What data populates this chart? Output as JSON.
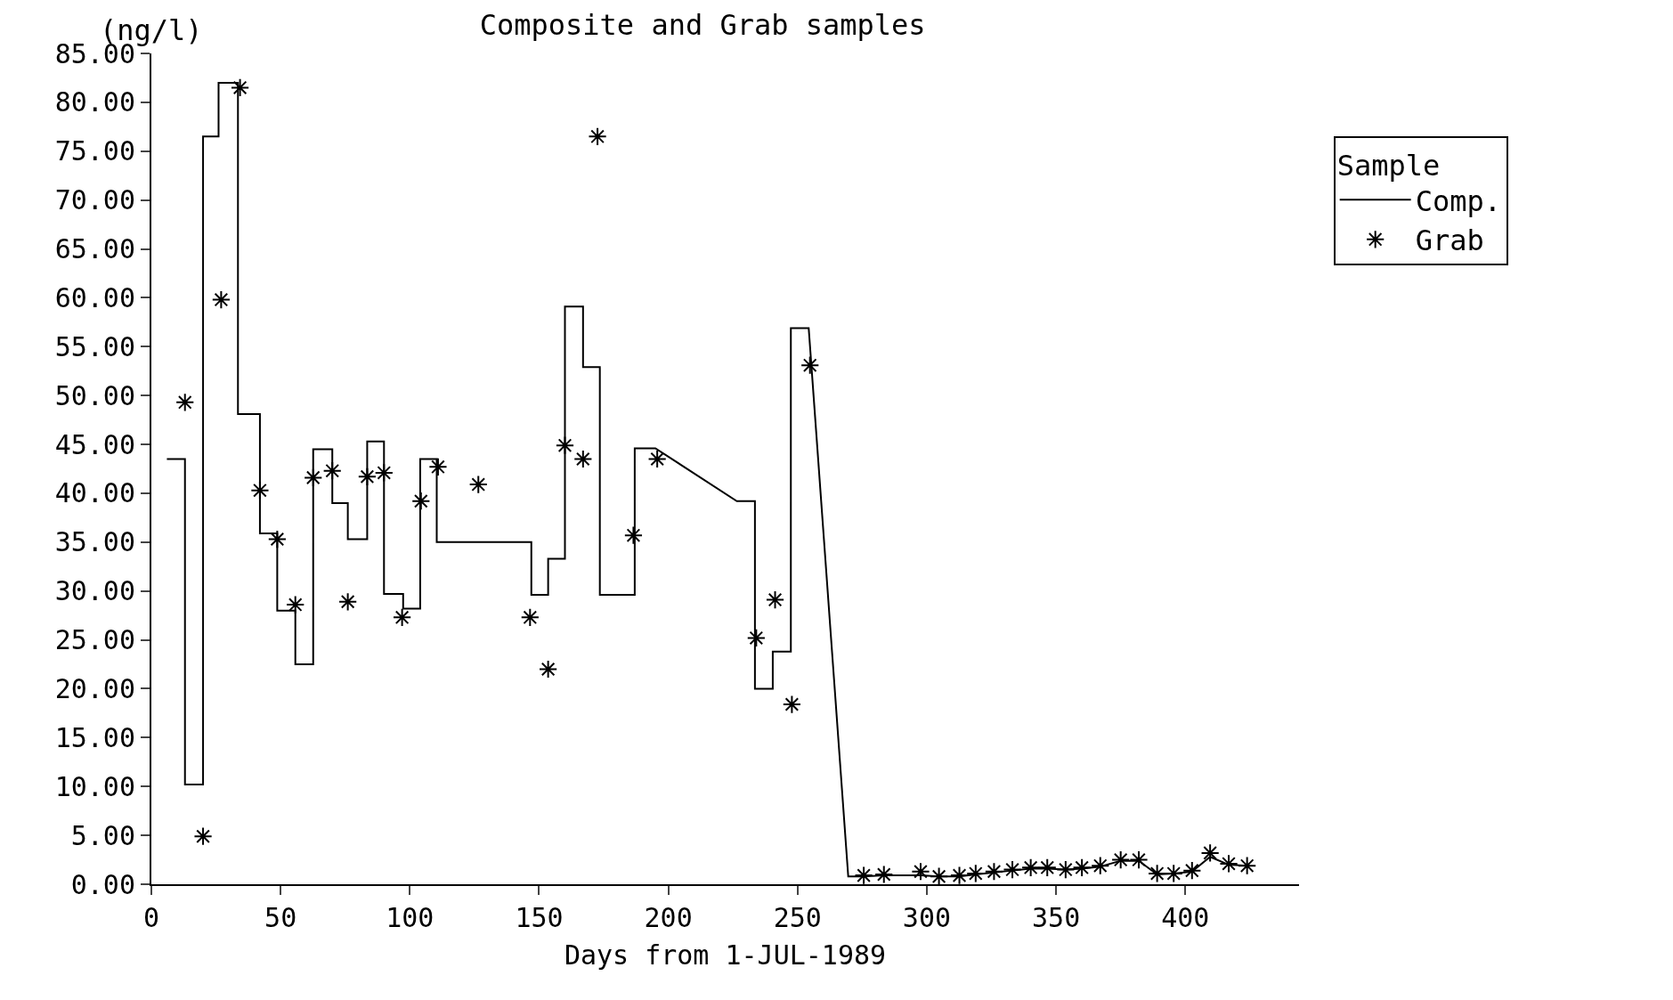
{
  "chart_data": {
    "type": "line",
    "title": "Composite and Grab samples",
    "xlabel": "Days from 1-JUL-1989",
    "ylabel": "(ng/l)",
    "legend_title": "Sample",
    "legend": "right",
    "xlim": [
      0,
      444
    ],
    "xticks": [
      0,
      50,
      100,
      150,
      200,
      250,
      300,
      350,
      400
    ],
    "ylim": [
      0,
      85
    ],
    "yticks": [
      {
        "value": 0,
        "label": "0.00"
      },
      {
        "value": 5,
        "label": "5.00"
      },
      {
        "value": 10,
        "label": "10.00"
      },
      {
        "value": 15,
        "label": "15.00"
      },
      {
        "value": 20,
        "label": "20.00"
      },
      {
        "value": 25,
        "label": "25.00"
      },
      {
        "value": 30,
        "label": "30.00"
      },
      {
        "value": 35,
        "label": "35.00"
      },
      {
        "value": 40,
        "label": "40.00"
      },
      {
        "value": 45,
        "label": "45.00"
      },
      {
        "value": 50,
        "label": "50.00"
      },
      {
        "value": 55,
        "label": "55.00"
      },
      {
        "value": 60,
        "label": "60.00"
      },
      {
        "value": 65,
        "label": "65.00"
      },
      {
        "value": 70,
        "label": "70.00"
      },
      {
        "value": 75,
        "label": "75.00"
      },
      {
        "value": 80,
        "label": "80.00"
      },
      {
        "value": 85,
        "label": "85.00"
      }
    ],
    "series": [
      {
        "name": "Comp.",
        "marker": "none",
        "line_style": "solid",
        "color": "#000000",
        "x": [
          6,
          13,
          13,
          20,
          20,
          26,
          26,
          33.5,
          33.5,
          42,
          42,
          48.7,
          48.7,
          55.7,
          55.7,
          62.6,
          62.6,
          70,
          70,
          76,
          76,
          83.5,
          83.5,
          90,
          90,
          97.4,
          97.4,
          104,
          104,
          110.4,
          110.4,
          147,
          147,
          153.5,
          153.5,
          160,
          160,
          167,
          167,
          173.5,
          173.5,
          187,
          187,
          195,
          226.5,
          233.5,
          233.5,
          240.4,
          240.4,
          247.4,
          247.4,
          254.3,
          269.6,
          275.6,
          283.4,
          297.6,
          304.7,
          312.6,
          318.9,
          326,
          333.1,
          340.2,
          346.6,
          353.7,
          360,
          367.1,
          375,
          382,
          389.1,
          395.5,
          402.6,
          409.6,
          416.8,
          423.9
        ],
        "values": [
          43.5,
          43.5,
          10.2,
          10.2,
          76.5,
          76.5,
          82,
          82,
          48.1,
          48.1,
          35.9,
          35.9,
          28,
          28,
          22.5,
          22.5,
          44.5,
          44.5,
          39,
          39,
          35.3,
          35.3,
          45.3,
          45.3,
          29.7,
          29.7,
          28.2,
          28.2,
          43.5,
          43.5,
          35,
          35,
          29.6,
          29.6,
          33.3,
          33.3,
          59.1,
          59.1,
          52.9,
          52.9,
          29.6,
          29.6,
          44.6,
          44.6,
          39.2,
          39.2,
          20,
          20,
          23.8,
          23.8,
          56.9,
          56.9,
          0.8,
          0.8,
          0.9,
          0.9,
          0.8,
          0.8,
          1.0,
          1.2,
          1.4,
          1.6,
          1.6,
          1.5,
          1.6,
          1.8,
          2.4,
          2.4,
          1.0,
          1.1,
          1.3,
          2.8,
          2.0,
          1.9
        ]
      },
      {
        "name": "Grab",
        "type": "scatter",
        "marker": "cross",
        "color": "#000000",
        "x": [
          13,
          20,
          27,
          34.3,
          42,
          48.7,
          55.7,
          62.6,
          70,
          76,
          83.5,
          90,
          97,
          104.3,
          110.9,
          126.5,
          146.5,
          153.5,
          160,
          167,
          172.6,
          186.5,
          195.7,
          234,
          241.3,
          247.8,
          254.8,
          275.6,
          283.4,
          297.6,
          304.7,
          312.6,
          318.9,
          326,
          333.1,
          340.2,
          346.6,
          353.7,
          360,
          367.1,
          375,
          382,
          389.1,
          395.5,
          402.6,
          409.6,
          416.8,
          423.9
        ],
        "values": [
          49.3,
          4.9,
          59.8,
          81.5,
          40.3,
          35.3,
          28.6,
          41.6,
          42.3,
          28.9,
          41.7,
          42.1,
          27.3,
          39.2,
          42.7,
          40.9,
          27.3,
          22,
          44.9,
          43.5,
          76.5,
          35.7,
          43.5,
          25.2,
          29.1,
          18.4,
          53.1,
          0.9,
          1.0,
          1.3,
          0.8,
          0.9,
          1.1,
          1.3,
          1.5,
          1.7,
          1.7,
          1.5,
          1.7,
          1.9,
          2.5,
          2.5,
          1.1,
          1.1,
          1.4,
          3.2,
          2.1,
          1.9
        ]
      }
    ]
  }
}
